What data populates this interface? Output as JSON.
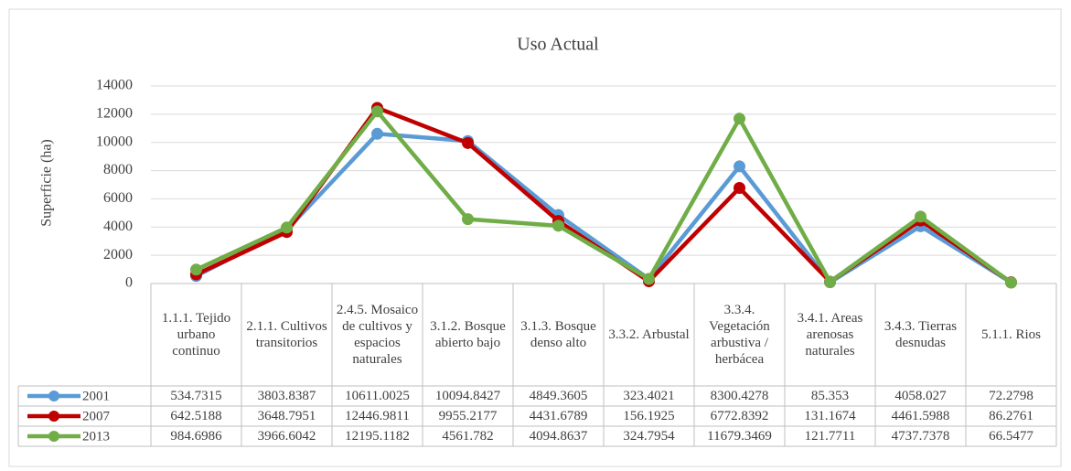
{
  "chart_data": {
    "type": "line",
    "title": "Uso Actual",
    "y_label": "Superficie (ha)",
    "categories": [
      "1.1.1. Tejido urbano continuo",
      "2.1.1. Cultivos transitorios",
      "2.4.5. Mosaico de cultivos y espacios naturales",
      "3.1.2. Bosque abierto bajo",
      "3.1.3. Bosque denso alto",
      "3.3.2. Arbustal",
      "3.3.4. Vegetación arbustiva / herbácea",
      "3.4.1. Areas arenosas naturales",
      "3.4.3. Tierras desnudas",
      "5.1.1. Rios"
    ],
    "series": [
      {
        "name": "2001",
        "color": "#5b9bd5",
        "values": [
          534.7315,
          3803.8387,
          10611.0025,
          10094.8427,
          4849.3605,
          323.4021,
          8300.4278,
          85.353,
          4058.027,
          72.2798
        ]
      },
      {
        "name": "2007",
        "color": "#c00000",
        "values": [
          642.5188,
          3648.7951,
          12446.9811,
          9955.2177,
          4431.6789,
          156.1925,
          6772.8392,
          131.1674,
          4461.5988,
          86.2761
        ]
      },
      {
        "name": "2013",
        "color": "#70ad47",
        "values": [
          984.6986,
          3966.6042,
          12195.1182,
          4561.782,
          4094.8637,
          324.7954,
          11679.3469,
          121.7711,
          4737.7378,
          66.5477
        ]
      }
    ],
    "ylim": [
      0,
      14000
    ],
    "yticks": [
      0,
      2000,
      4000,
      6000,
      8000,
      10000,
      12000,
      14000
    ],
    "grid": true,
    "data_table": true
  }
}
